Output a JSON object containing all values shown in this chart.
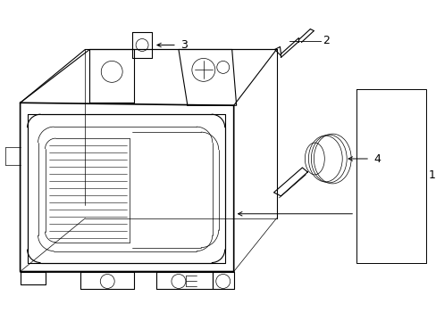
{
  "background_color": "#ffffff",
  "line_color": "#000000",
  "figsize": [
    4.89,
    3.6
  ],
  "dpi": 100,
  "lw_main": 1.2,
  "lw_detail": 0.8,
  "lw_thin": 0.5
}
